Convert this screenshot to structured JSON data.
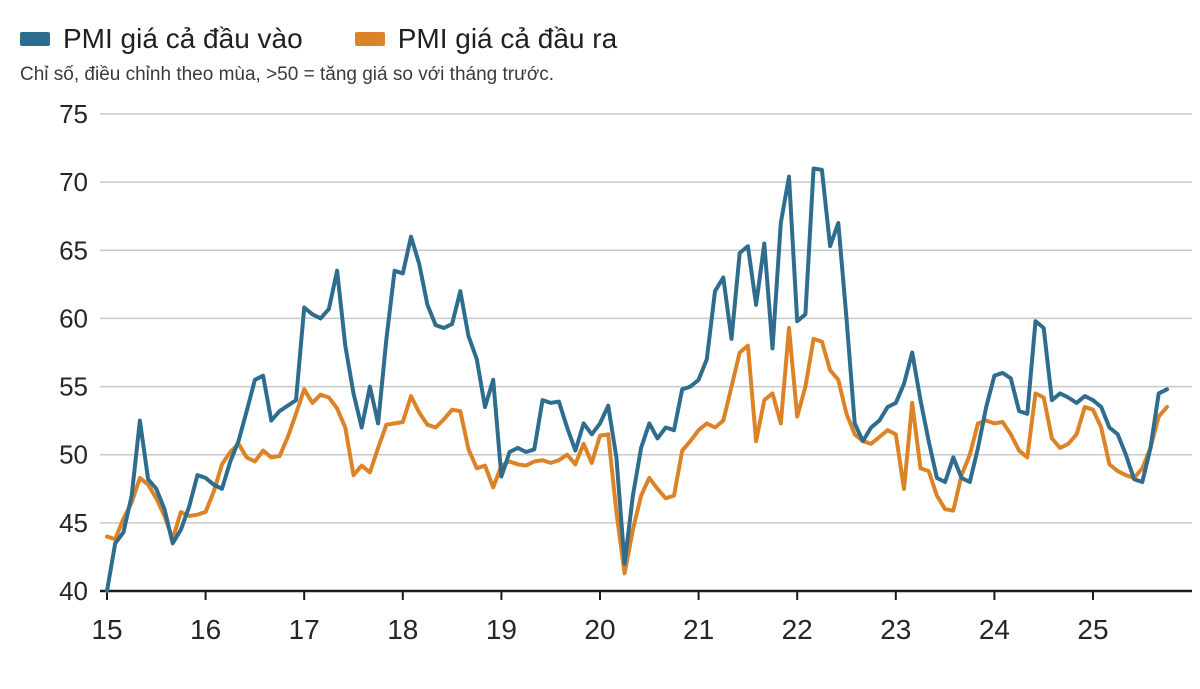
{
  "chart_data": {
    "type": "line",
    "subtitle": "Chỉ số, điều chỉnh theo mùa, >50 = tăng giá so với tháng trước.",
    "x_start": "2015-01",
    "x_end": "2025-10",
    "points_per_year": 12,
    "x_tick_labels": [
      "15",
      "16",
      "17",
      "18",
      "19",
      "20",
      "21",
      "22",
      "23",
      "24",
      "25"
    ],
    "y_ticks": [
      40,
      45,
      50,
      55,
      60,
      65,
      70,
      75
    ],
    "ylim": [
      40,
      75
    ],
    "grid": "horizontal",
    "legend_position": "top-left",
    "grid_color": "#c9c9c9",
    "axis_color": "#1a1a1a",
    "axis_label_color": "#262626",
    "series": [
      {
        "name": "PMI giá cả đầu vào",
        "color": "#2e6d8e",
        "values": [
          40.0,
          43.5,
          44.3,
          47.0,
          52.5,
          48.2,
          47.5,
          46.0,
          43.5,
          44.5,
          46.2,
          48.5,
          48.3,
          47.8,
          47.5,
          49.5,
          51.0,
          53.2,
          55.5,
          55.8,
          52.5,
          53.2,
          53.6,
          54.0,
          60.8,
          60.3,
          60.0,
          60.7,
          63.5,
          58.0,
          54.5,
          52.0,
          55.0,
          52.3,
          58.5,
          63.5,
          63.3,
          66.0,
          64.0,
          61.0,
          59.5,
          59.3,
          59.6,
          62.0,
          58.7,
          57.0,
          53.5,
          55.5,
          48.4,
          50.2,
          50.5,
          50.2,
          50.4,
          54.0,
          53.8,
          53.9,
          52.0,
          50.3,
          52.3,
          51.5,
          52.3,
          53.6,
          49.8,
          42.0,
          47.0,
          50.5,
          52.3,
          51.2,
          52.0,
          51.8,
          54.8,
          55.0,
          55.5,
          57.0,
          62.0,
          63.0,
          58.5,
          64.8,
          65.3,
          61.0,
          65.5,
          57.8,
          67.0,
          70.4,
          59.8,
          60.3,
          71.0,
          70.9,
          65.3,
          67.0,
          60.0,
          52.3,
          51.0,
          52.0,
          52.5,
          53.5,
          53.8,
          55.2,
          57.5,
          54.0,
          51.0,
          48.3,
          48.0,
          49.8,
          48.3,
          48.0,
          50.5,
          53.5,
          55.8,
          56.0,
          55.6,
          53.2,
          53.0,
          59.8,
          59.3,
          54.0,
          54.5,
          54.2,
          53.8,
          54.3,
          54.0,
          53.5,
          52.0,
          51.5,
          50.0,
          48.2,
          48.0,
          50.5,
          54.5,
          54.8
        ]
      },
      {
        "name": "PMI giá cả đầu ra",
        "color": "#dd8327",
        "values": [
          44.0,
          43.8,
          45.3,
          46.5,
          48.3,
          47.8,
          46.8,
          45.5,
          43.8,
          45.8,
          45.5,
          45.6,
          45.8,
          47.3,
          49.3,
          50.2,
          50.8,
          49.8,
          49.5,
          50.3,
          49.8,
          49.9,
          51.3,
          53.0,
          54.8,
          53.8,
          54.4,
          54.2,
          53.4,
          52.0,
          48.5,
          49.2,
          48.7,
          50.5,
          52.2,
          52.3,
          52.4,
          54.3,
          53.1,
          52.2,
          52.0,
          52.6,
          53.3,
          53.2,
          50.4,
          49.0,
          49.2,
          47.6,
          49.2,
          49.5,
          49.3,
          49.2,
          49.5,
          49.6,
          49.4,
          49.6,
          50.0,
          49.3,
          50.8,
          49.4,
          51.4,
          51.5,
          45.8,
          41.3,
          44.5,
          47.0,
          48.3,
          47.5,
          46.8,
          47.0,
          50.3,
          51.0,
          51.8,
          52.3,
          52.0,
          52.5,
          55.0,
          57.5,
          58.0,
          51.0,
          54.0,
          54.5,
          52.3,
          59.3,
          52.8,
          55.0,
          58.5,
          58.3,
          56.2,
          55.5,
          53.0,
          51.5,
          51.0,
          50.8,
          51.3,
          51.8,
          51.5,
          47.5,
          53.8,
          49.0,
          48.8,
          47.0,
          46.0,
          45.9,
          48.5,
          50.0,
          52.3,
          52.5,
          52.3,
          52.4,
          51.5,
          50.3,
          49.8,
          54.5,
          54.2,
          51.2,
          50.5,
          50.8,
          51.5,
          53.5,
          53.3,
          52.0,
          49.3,
          48.8,
          48.5,
          48.3,
          49.0,
          50.5,
          52.8,
          53.5
        ]
      }
    ]
  }
}
